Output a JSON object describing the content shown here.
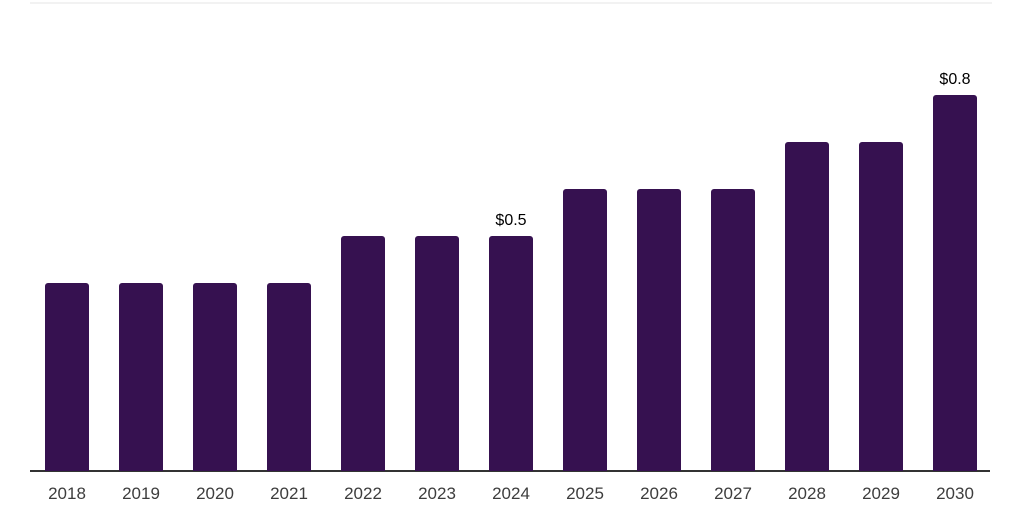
{
  "chart_data": {
    "type": "bar",
    "title": "",
    "xlabel": "",
    "ylabel": "",
    "categories": [
      "2018",
      "2019",
      "2020",
      "2021",
      "2022",
      "2023",
      "2024",
      "2025",
      "2026",
      "2027",
      "2028",
      "2029",
      "2030"
    ],
    "values": [
      0.4,
      0.4,
      0.4,
      0.4,
      0.5,
      0.5,
      0.5,
      0.6,
      0.6,
      0.6,
      0.7,
      0.7,
      0.8
    ],
    "value_labels": [
      "",
      "",
      "",
      "",
      "",
      "",
      "$0.5",
      "",
      "",
      "",
      "",
      "",
      "$0.8"
    ],
    "ylim": [
      0,
      1.0
    ],
    "grid": "off",
    "legend": "none",
    "colors": {
      "bar": "#361150",
      "axis_line": "#333333",
      "tick_label": "#3d3d3d",
      "value_label": "#000000",
      "top_border": "#f2f2f2",
      "background": "#ffffff"
    }
  }
}
